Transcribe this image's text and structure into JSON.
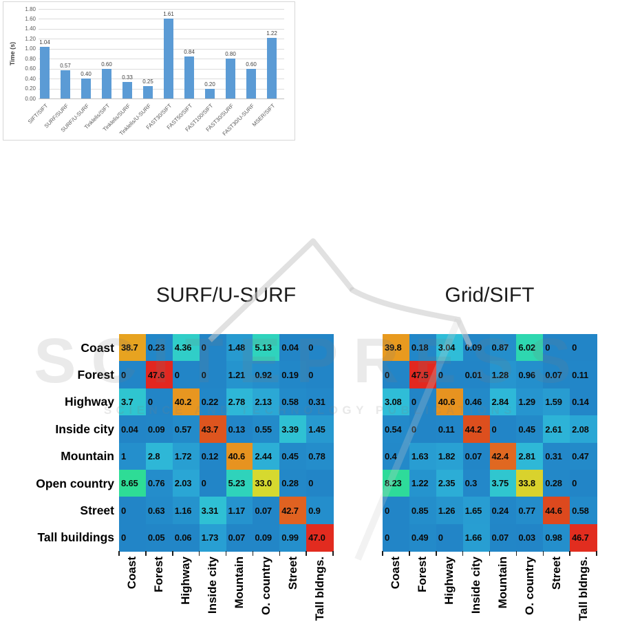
{
  "figure": {
    "watermark": {
      "brand": "SCITEPRESS",
      "tagline": "SCIENCE AND TECHNOLOGY PUBLICATIONS"
    }
  },
  "chart_data": [
    {
      "type": "bar",
      "title": "",
      "xlabel": "",
      "ylabel": "Time (s)",
      "ylim": [
        0,
        1.8
      ],
      "ytick_step": 0.2,
      "ytick_labels": [
        "0.00",
        "0.20",
        "0.40",
        "0.60",
        "0.80",
        "1.00",
        "1.20",
        "1.40",
        "1.60",
        "1.80"
      ],
      "grid": true,
      "legend": "none",
      "categories": [
        "SIFT/SIFT",
        "SURF/SURF",
        "SURF/U-SURF",
        "Tinklelis/SIFT",
        "Tinklelis/SURF",
        "Tinklelis/U-SURF",
        "FAST30/SIFT",
        "FAST50/SIFT",
        "FAST100/SIFT",
        "FAST30/SURF",
        "FAST30/U-SURF",
        "MSER/SIFT"
      ],
      "values": [
        1.04,
        0.57,
        0.4,
        0.6,
        0.33,
        0.25,
        1.61,
        0.84,
        0.2,
        0.8,
        0.6,
        1.22
      ],
      "value_labels": [
        "1.04",
        "0.57",
        "0.40",
        "0.60",
        "0.33",
        "0.25",
        "1.61",
        "0.84",
        "0.20",
        "0.80",
        "0.60",
        "1.22"
      ]
    },
    {
      "type": "heatmap",
      "title": "SURF/U-SURF",
      "row_labels": [
        "Coast",
        "Forest",
        "Highway",
        "Inside city",
        "Mountain",
        "Open country",
        "Street",
        "Tall buildings"
      ],
      "col_labels": [
        "Coast",
        "Forest",
        "Highway",
        "Inside city",
        "Mountain",
        "O. country",
        "Street",
        "Tall bldngs."
      ],
      "values": [
        [
          "38.7",
          "0.23",
          "4.36",
          "0",
          "1.48",
          "5.13",
          "0.04",
          "0"
        ],
        [
          "0",
          "47.6",
          "0",
          "0",
          "1.21",
          "0.92",
          "0.19",
          "0"
        ],
        [
          "3.7",
          "0",
          "40.2",
          "0.22",
          "2.78",
          "2.13",
          "0.58",
          "0.31"
        ],
        [
          "0.04",
          "0.09",
          "0.57",
          "43.7",
          "0.13",
          "0.55",
          "3.39",
          "1.45"
        ],
        [
          "1",
          "2.8",
          "1.72",
          "0.12",
          "40.6",
          "2.44",
          "0.45",
          "0.78"
        ],
        [
          "8.65",
          "0.76",
          "2.03",
          "0",
          "5.23",
          "33.0",
          "0.28",
          "0"
        ],
        [
          "0",
          "0.63",
          "1.16",
          "3.31",
          "1.17",
          "0.07",
          "42.7",
          "0.9"
        ],
        [
          "0",
          "0.05",
          "0.06",
          "1.73",
          "0.07",
          "0.09",
          "0.99",
          "47.0"
        ]
      ]
    },
    {
      "type": "heatmap",
      "title": "Grid/SIFT",
      "row_labels": [],
      "col_labels": [
        "Coast",
        "Forest",
        "Highway",
        "Inside city",
        "Mountain",
        "O. country",
        "Street",
        "Tall bldngs."
      ],
      "values": [
        [
          "39.8",
          "0.18",
          "3.04",
          "0.09",
          "0.87",
          "6.02",
          "0",
          "0"
        ],
        [
          "0",
          "47.5",
          "0",
          "0.01",
          "1.28",
          "0.96",
          "0.07",
          "0.11"
        ],
        [
          "3.08",
          "0",
          "40.6",
          "0.46",
          "2.84",
          "1.29",
          "1.59",
          "0.14"
        ],
        [
          "0.54",
          "0",
          "0.11",
          "44.2",
          "0",
          "0.45",
          "2.61",
          "2.08"
        ],
        [
          "0.4",
          "1.63",
          "1.82",
          "0.07",
          "42.4",
          "2.81",
          "0.31",
          "0.47"
        ],
        [
          "8.23",
          "1.22",
          "2.35",
          "0.3",
          "3.75",
          "33.8",
          "0.28",
          "0"
        ],
        [
          "0",
          "0.85",
          "1.26",
          "1.65",
          "0.24",
          "0.77",
          "44.6",
          "0.58"
        ],
        [
          "0",
          "0.49",
          "0",
          "1.66",
          "0.07",
          "0.03",
          "0.98",
          "46.7"
        ]
      ]
    }
  ],
  "colors": {
    "bar": "#5B9BD5",
    "gridline": "#dcdcdc",
    "colormap_anchors": [
      [
        0,
        "#2285c7"
      ],
      [
        1,
        "#248fcc"
      ],
      [
        2,
        "#2aa5d5"
      ],
      [
        3,
        "#2fbcd8"
      ],
      [
        4.5,
        "#30d0c6"
      ],
      [
        6,
        "#2ed7b0"
      ],
      [
        9,
        "#2edd92"
      ],
      [
        33,
        "#d6d92f"
      ],
      [
        36,
        "#e2c026"
      ],
      [
        39,
        "#e8a01f"
      ],
      [
        41,
        "#e79020"
      ],
      [
        42.5,
        "#e06521"
      ],
      [
        44.5,
        "#dd4b1e"
      ],
      [
        46.3,
        "#e2301f"
      ],
      [
        48,
        "#e22420"
      ]
    ]
  }
}
